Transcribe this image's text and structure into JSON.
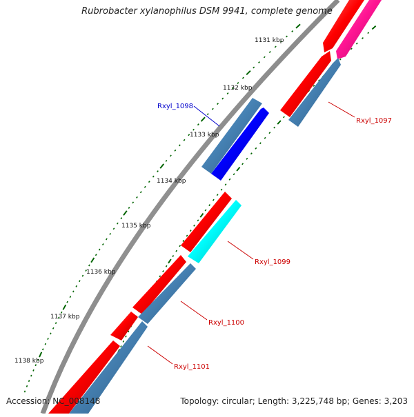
{
  "title": "Rubrobacter xylanophilus DSM 9941, complete genome",
  "footer": {
    "accession": "Accession: NC_008148",
    "topology": "Topology: circular; Length: 3,225,748 bp; Genes: 3,203"
  },
  "colors": {
    "backbone": "#8a8a8a",
    "forward_cds": "#ff0000",
    "reverse_cds": "#4682b4",
    "highlight_forward": "#ff1493",
    "selected_gene": "#0000ff",
    "focus_gene": "#00ffff",
    "ticks": "#006400",
    "label_red": "#cc0000",
    "label_blue": "#0000cc"
  },
  "scale_labels": [
    {
      "text": "1131 kbp"
    },
    {
      "text": "1132 kbp"
    },
    {
      "text": "1133 kbp"
    },
    {
      "text": "1134 kbp"
    },
    {
      "text": "1135 kbp"
    },
    {
      "text": "1136 kbp"
    },
    {
      "text": "1137 kbp"
    },
    {
      "text": "1138 kbp"
    }
  ],
  "gene_labels": [
    {
      "name": "Rxyl_1098",
      "color": "label_blue"
    },
    {
      "name": "Rxyl_1097",
      "color": "label_red"
    },
    {
      "name": "Rxyl_1099",
      "color": "label_red"
    },
    {
      "name": "Rxyl_1100",
      "color": "label_red"
    },
    {
      "name": "Rxyl_1101",
      "color": "label_red"
    }
  ]
}
